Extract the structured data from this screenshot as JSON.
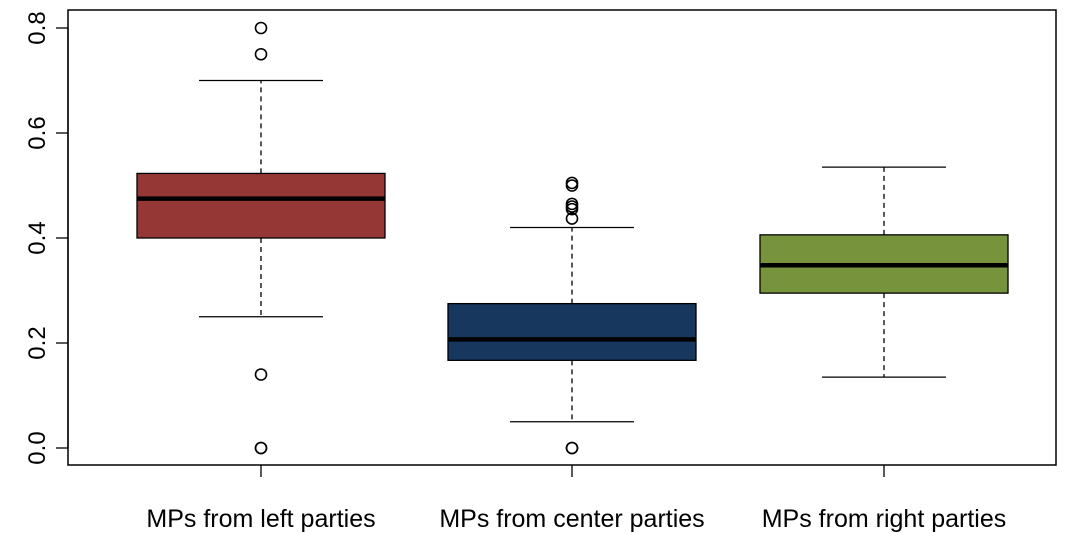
{
  "chart_data": {
    "type": "boxplot",
    "title": "",
    "xlabel": "",
    "ylabel": "",
    "ylim": [
      -0.03,
      0.82
    ],
    "yticks": [
      0.0,
      0.2,
      0.4,
      0.6,
      0.8
    ],
    "ytick_labels": [
      "0.0",
      "0.2",
      "0.4",
      "0.6",
      "0.8"
    ],
    "grid": false,
    "legend": "none",
    "categories": [
      "MPs from left parties",
      "MPs from center parties",
      "MPs from right parties"
    ],
    "boxes": [
      {
        "category": "MPs from left parties",
        "color": "#953735",
        "whisker_low": 0.25,
        "q1": 0.4,
        "median": 0.475,
        "q3": 0.523,
        "whisker_high": 0.7,
        "outliers": [
          0.8,
          0.75,
          0.14,
          0.0,
          0.0
        ]
      },
      {
        "category": "MPs from center parties",
        "color": "#17375E",
        "whisker_low": 0.05,
        "q1": 0.167,
        "median": 0.207,
        "q3": 0.275,
        "whisker_high": 0.42,
        "outliers": [
          0.505,
          0.5,
          0.465,
          0.46,
          0.455,
          0.437,
          0.0,
          0.0
        ]
      },
      {
        "category": "MPs from right parties",
        "color": "#77933C",
        "whisker_low": 0.135,
        "q1": 0.295,
        "median": 0.348,
        "q3": 0.406,
        "whisker_high": 0.535,
        "outliers": []
      }
    ]
  }
}
